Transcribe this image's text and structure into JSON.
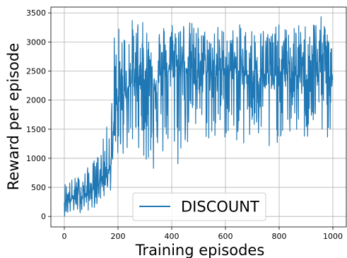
{
  "chart_data": {
    "type": "line",
    "xlabel": "Training episodes",
    "ylabel": "Reward per episode",
    "xlim": [
      -50,
      1050
    ],
    "ylim": [
      -180,
      3600
    ],
    "xticks": [
      0,
      200,
      400,
      600,
      800,
      1000
    ],
    "yticks": [
      0,
      500,
      1000,
      1500,
      2000,
      2500,
      3000,
      3500
    ],
    "grid": true,
    "legend_position": "lower-center",
    "series": [
      {
        "name": "DISCOUNT",
        "color": "#1f77b4",
        "x": [
          0,
          25,
          50,
          75,
          100,
          125,
          150,
          175,
          185,
          200,
          225,
          250,
          275,
          300,
          325,
          350,
          375,
          400,
          425,
          450,
          475,
          500,
          525,
          550,
          575,
          600,
          625,
          650,
          675,
          700,
          725,
          750,
          775,
          800,
          825,
          850,
          875,
          900,
          925,
          950,
          975,
          1000
        ],
        "mean": [
          260,
          300,
          330,
          360,
          420,
          540,
          720,
          900,
          1400,
          1900,
          2150,
          2300,
          2400,
          2350,
          2300,
          2350,
          2400,
          2600,
          2650,
          2550,
          2550,
          2500,
          2500,
          2450,
          2500,
          2550,
          2500,
          2450,
          2450,
          2400,
          2450,
          2450,
          2400,
          2450,
          2450,
          2450,
          2400,
          2400,
          2550,
          2550,
          2500,
          2400
        ],
        "low": [
          0,
          0,
          50,
          80,
          100,
          200,
          300,
          450,
          700,
          1000,
          1000,
          1000,
          1200,
          900,
          600,
          1000,
          900,
          1100,
          700,
          1200,
          900,
          1400,
          1300,
          1100,
          1100,
          1300,
          1200,
          1300,
          1100,
          1100,
          1200,
          450,
          1100,
          1300,
          1300,
          1300,
          1400,
          1200,
          1300,
          1400,
          1300,
          1100
        ],
        "high": [
          600,
          650,
          700,
          800,
          900,
          1100,
          1400,
          1900,
          3300,
          3300,
          3300,
          3400,
          3450,
          3300,
          3300,
          3350,
          3350,
          3400,
          3450,
          3400,
          3350,
          3300,
          3250,
          3300,
          3300,
          3250,
          3250,
          3300,
          3300,
          3300,
          3250,
          3300,
          3300,
          3300,
          3250,
          3300,
          3300,
          3350,
          3450,
          3450,
          3400,
          3350
        ]
      }
    ]
  }
}
